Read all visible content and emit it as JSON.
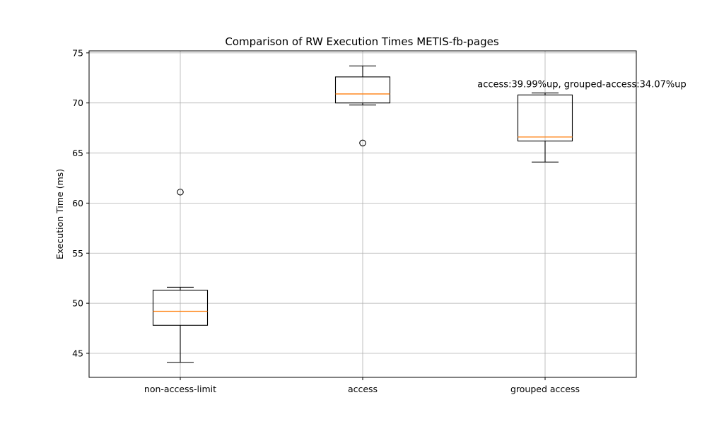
{
  "chart_data": {
    "type": "boxplot",
    "title": "Comparison of RW Execution Times METIS-fb-pages",
    "xlabel": "",
    "ylabel": "Execution Time (ms)",
    "ylim": [
      42.6,
      75.2
    ],
    "yticks": [
      45,
      50,
      55,
      60,
      65,
      70,
      75
    ],
    "grid": true,
    "categories": [
      "non-access-limit",
      "access",
      "grouped access"
    ],
    "boxes": [
      {
        "category": "non-access-limit",
        "whisker_low": 44.1,
        "q1": 47.8,
        "median": 49.2,
        "q3": 51.3,
        "whisker_high": 51.6,
        "outliers": [
          61.1
        ]
      },
      {
        "category": "access",
        "whisker_low": 69.8,
        "q1": 70.0,
        "median": 70.9,
        "q3": 72.6,
        "whisker_high": 73.7,
        "outliers": [
          66.0
        ]
      },
      {
        "category": "grouped access",
        "whisker_low": 64.1,
        "q1": 66.2,
        "median": 66.6,
        "q3": 70.8,
        "whisker_high": 71.0,
        "outliers": []
      }
    ],
    "annotation": {
      "text": "access:39.99%up, grouped-access:34.07%up",
      "x_category": "grouped access",
      "y": 71.9
    },
    "colors": {
      "median": "#ff7f0e",
      "box": "#000000",
      "grid": "#b0b0b0"
    }
  }
}
